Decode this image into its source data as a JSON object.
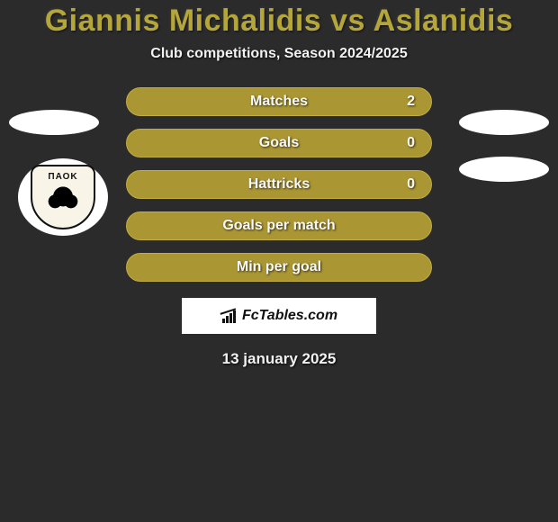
{
  "title": "Giannis Michalidis vs Aslanidis",
  "subtitle": "Club competitions, Season 2024/2025",
  "colors": {
    "background": "#2b2b2b",
    "accent": "#aa9632",
    "pill_border": "#c1ad42",
    "title_color": "#b4a638",
    "text_light": "#f2f2f2",
    "white": "#ffffff",
    "black": "#111111"
  },
  "left_badge": {
    "club_text": "ΠΑΟΚ"
  },
  "stats": [
    {
      "label": "Matches",
      "value": "2"
    },
    {
      "label": "Goals",
      "value": "0"
    },
    {
      "label": "Hattricks",
      "value": "0"
    },
    {
      "label": "Goals per match",
      "value": ""
    },
    {
      "label": "Min per goal",
      "value": ""
    }
  ],
  "brand": "FcTables.com",
  "date": "13 january 2025"
}
